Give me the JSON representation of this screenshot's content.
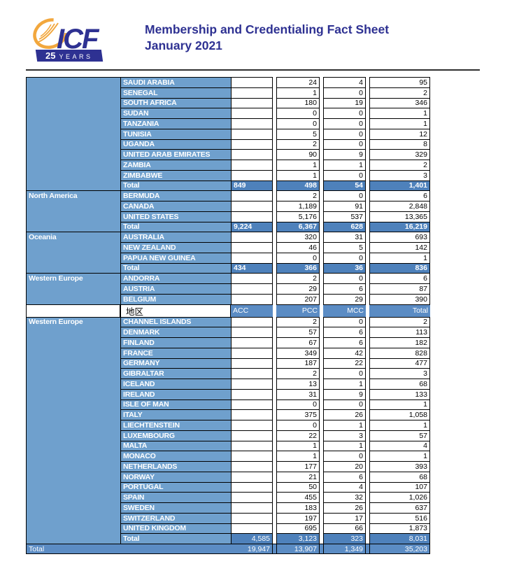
{
  "header": {
    "logo": {
      "brand": "ICF",
      "badge_25": "25",
      "badge_years": "YEARS"
    },
    "title_line1": "Membership and Credentialing Fact Sheet",
    "title_line2": "January 2021"
  },
  "colors": {
    "light_blue": "#6FA0CD",
    "medium_blue": "#4E81BB",
    "header_blue": "#5B8CC4",
    "navy": "#2E3192",
    "gold": "#F2A73D"
  },
  "table": {
    "column_headers": {
      "region_label": "地区",
      "acc": "ACC",
      "pcc": "PCC",
      "mcc": "MCC",
      "total": "Total"
    },
    "rows": [
      {
        "t": "c",
        "rs": true,
        "c": "SAUDI ARABIA",
        "p": "24",
        "m": "4",
        "tt": "95"
      },
      {
        "t": "c",
        "c": "SENEGAL",
        "p": "1",
        "m": "0",
        "tt": "2"
      },
      {
        "t": "c",
        "c": "SOUTH AFRICA",
        "p": "180",
        "m": "19",
        "tt": "346"
      },
      {
        "t": "c",
        "c": "SUDAN",
        "p": "0",
        "m": "0",
        "tt": "1"
      },
      {
        "t": "c",
        "c": "TANZANIA",
        "p": "0",
        "m": "0",
        "tt": "1"
      },
      {
        "t": "c",
        "c": "TUNISIA",
        "p": "5",
        "m": "0",
        "tt": "12"
      },
      {
        "t": "c",
        "c": "UGANDA",
        "p": "2",
        "m": "0",
        "tt": "8"
      },
      {
        "t": "c",
        "c": "UNITED ARAB EMIRATES",
        "p": "90",
        "m": "9",
        "tt": "329"
      },
      {
        "t": "c",
        "c": "ZAMBIA",
        "p": "1",
        "m": "1",
        "tt": "2"
      },
      {
        "t": "c",
        "c": "ZIMBABWE",
        "p": "1",
        "m": "0",
        "tt": "3"
      },
      {
        "t": "tb",
        "c": "Total",
        "a": "849",
        "p": "498",
        "m": "54",
        "tt": "1,401"
      },
      {
        "t": "c",
        "r": "North America",
        "rs": true,
        "c": "BERMUDA",
        "p": "2",
        "m": "0",
        "tt": "6"
      },
      {
        "t": "c",
        "c": "CANADA",
        "p": "1,189",
        "m": "91",
        "tt": "2,848"
      },
      {
        "t": "c",
        "c": "UNITED STATES",
        "p": "5,176",
        "m": "537",
        "tt": "13,365"
      },
      {
        "t": "tb",
        "c": "Total",
        "a": "9,224",
        "p": "6,367",
        "m": "628",
        "tt": "16,219"
      },
      {
        "t": "c",
        "r": "Oceania",
        "rs": true,
        "c": "AUSTRALIA",
        "p": "320",
        "m": "31",
        "tt": "693"
      },
      {
        "t": "c",
        "c": "NEW ZEALAND",
        "p": "46",
        "m": "5",
        "tt": "142"
      },
      {
        "t": "c",
        "c": "PAPUA NEW GUINEA",
        "p": "0",
        "m": "0",
        "tt": "1"
      },
      {
        "t": "tb",
        "c": "Total",
        "a": "434",
        "p": "366",
        "m": "36",
        "tt": "836"
      },
      {
        "t": "c",
        "r": "Western Europe",
        "rs": true,
        "c": "ANDORRA",
        "p": "2",
        "m": "0",
        "tt": "6"
      },
      {
        "t": "c",
        "c": "AUSTRIA",
        "p": "29",
        "m": "6",
        "tt": "87"
      },
      {
        "t": "c",
        "c": "BELGIUM",
        "p": "207",
        "m": "29",
        "tt": "390"
      },
      {
        "t": "h"
      },
      {
        "t": "c",
        "r": "Western Europe",
        "rs": true,
        "c": "CHANNEL ISLANDS",
        "p": "2",
        "m": "0",
        "tt": "2"
      },
      {
        "t": "c",
        "c": "DENMARK",
        "p": "57",
        "m": "6",
        "tt": "113"
      },
      {
        "t": "c",
        "c": "FINLAND",
        "p": "67",
        "m": "6",
        "tt": "182"
      },
      {
        "t": "c",
        "c": "FRANCE",
        "p": "349",
        "m": "42",
        "tt": "828"
      },
      {
        "t": "c",
        "c": "GERMANY",
        "p": "187",
        "m": "22",
        "tt": "477"
      },
      {
        "t": "c",
        "c": "GIBRALTAR",
        "p": "2",
        "m": "0",
        "tt": "3"
      },
      {
        "t": "c",
        "c": "ICELAND",
        "p": "13",
        "m": "1",
        "tt": "68"
      },
      {
        "t": "c",
        "c": "IRELAND",
        "p": "31",
        "m": "9",
        "tt": "133"
      },
      {
        "t": "c",
        "c": "ISLE OF MAN",
        "p": "0",
        "m": "0",
        "tt": "1"
      },
      {
        "t": "c",
        "c": "ITALY",
        "p": "375",
        "m": "26",
        "tt": "1,058"
      },
      {
        "t": "c",
        "c": "LIECHTENSTEIN",
        "p": "0",
        "m": "1",
        "tt": "1"
      },
      {
        "t": "c",
        "c": "LUXEMBOURG",
        "p": "22",
        "m": "3",
        "tt": "57"
      },
      {
        "t": "c",
        "c": "MALTA",
        "p": "1",
        "m": "1",
        "tt": "4"
      },
      {
        "t": "c",
        "c": "MONACO",
        "p": "1",
        "m": "0",
        "tt": "1"
      },
      {
        "t": "c",
        "c": "NETHERLANDS",
        "p": "177",
        "m": "20",
        "tt": "393"
      },
      {
        "t": "c",
        "c": "NORWAY",
        "p": "21",
        "m": "6",
        "tt": "68"
      },
      {
        "t": "c",
        "c": "PORTUGAL",
        "p": "50",
        "m": "4",
        "tt": "107"
      },
      {
        "t": "c",
        "c": "SPAIN",
        "p": "455",
        "m": "32",
        "tt": "1,026"
      },
      {
        "t": "c",
        "c": "SWEDEN",
        "p": "183",
        "m": "26",
        "tt": "637"
      },
      {
        "t": "c",
        "c": "SWITZERLAND",
        "p": "197",
        "m": "17",
        "tt": "516"
      },
      {
        "t": "c",
        "c": "UNITED KINGDOM",
        "p": "695",
        "m": "66",
        "tt": "1,873"
      },
      {
        "t": "tp",
        "c": "Total",
        "a": "4,585",
        "p": "3,123",
        "m": "323",
        "tt": "8,031"
      },
      {
        "t": "g",
        "c": "Total",
        "a": "19,947",
        "p": "13,907",
        "m": "1,349",
        "tt": "35,203"
      }
    ]
  }
}
